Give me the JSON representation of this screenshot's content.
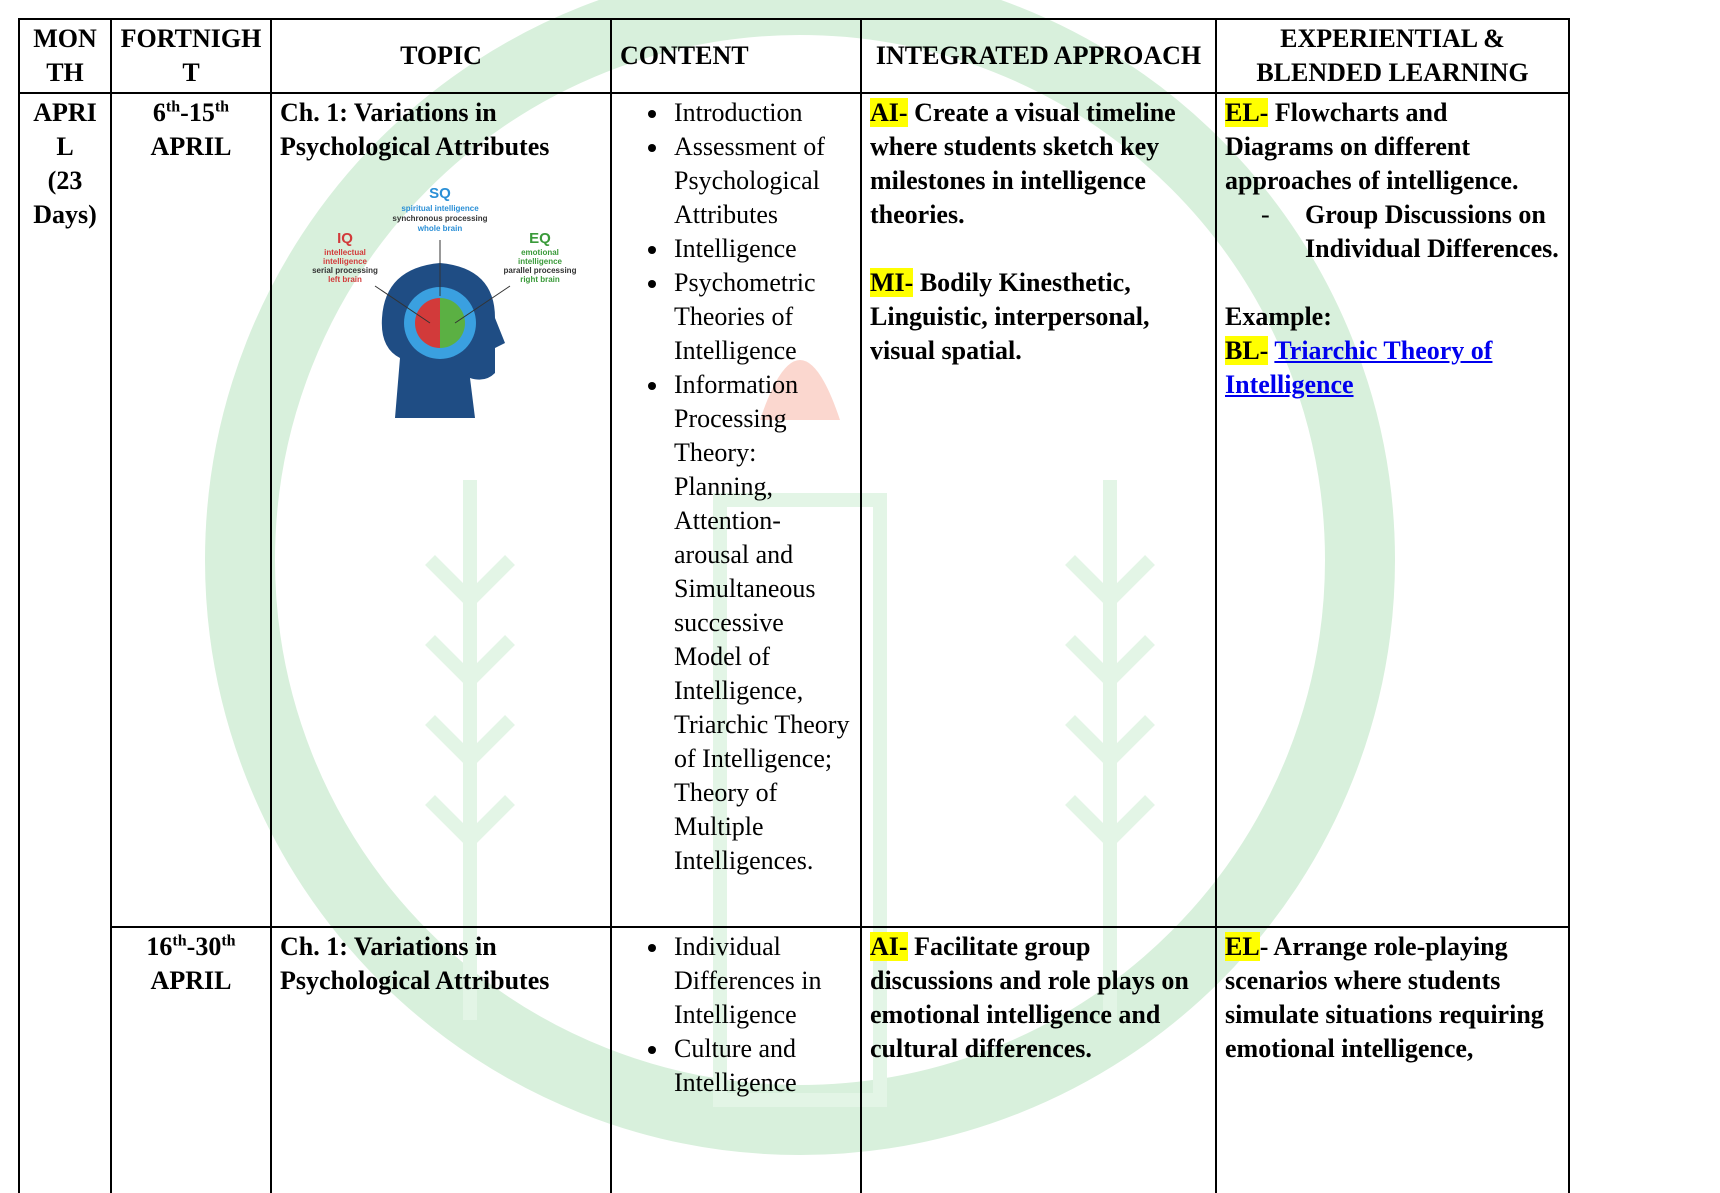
{
  "table": {
    "header": [
      "MONTH",
      "FORTNIGHT",
      "TOPIC",
      "CONTENT",
      "INTEGRATED APPROACH",
      "EXPERIENTIAL & BLENDED LEARNING"
    ],
    "month": {
      "name": "APRIL",
      "days": "(23 Days)"
    },
    "rows": [
      {
        "fortnight": {
          "start": "6",
          "start_sup": "th",
          "sep": "-",
          "end": "15",
          "end_sup": "th",
          "month": "APRIL"
        },
        "topic": "Ch. 1: Variations in Psychological Attributes",
        "figure": {
          "sq": {
            "code": "SQ",
            "lines": [
              "spiritual intelligence",
              "synchronous processing",
              "whole brain"
            ]
          },
          "iq": {
            "code": "IQ",
            "lines": [
              "intellectual",
              "intelligence",
              "serial processing",
              "left brain"
            ]
          },
          "eq": {
            "code": "EQ",
            "lines": [
              "emotional",
              "intelligence",
              "parallel processing",
              "right brain"
            ]
          }
        },
        "content": [
          "Introduction",
          "Assessment of Psychological Attributes",
          "Intelligence",
          "Psychometric Theories of Intelligence",
          "Information Processing Theory: Planning, Attention-arousal and Simultaneous successive Model of Intelligence, Triarchic Theory of Intelligence; Theory of Multiple Intelligences."
        ],
        "integrated": [
          {
            "tag": "AI-",
            "text": "Create a visual timeline where students sketch key milestones in intelligence theories."
          },
          {
            "tag": "MI-",
            "text": "Bodily Kinesthetic, Linguistic, interpersonal, visual spatial."
          }
        ],
        "experiential": {
          "el": {
            "tag": "EL-",
            "text": "Flowcharts and Diagrams on different approaches of intelligence."
          },
          "sub": [
            "Group Discussions on Individual Differences."
          ],
          "example": "Example:",
          "bl": {
            "tag": "BL-",
            "link": "Triarchic Theory of Intelligence"
          }
        }
      },
      {
        "fortnight": {
          "start": "16",
          "start_sup": "th",
          "sep": "-",
          "end": "30",
          "end_sup": "th",
          "month": "APRIL"
        },
        "topic": "Ch. 1: Variations in Psychological Attributes",
        "content": [
          "Individual Differences in Intelligence",
          "Culture and Intelligence"
        ],
        "integrated": [
          {
            "tag": "AI-",
            "text": "Facilitate group discussions and role plays on emotional intelligence and cultural differences."
          }
        ],
        "experiential": {
          "el": {
            "tag": "EL",
            "text": "- Arrange role-playing scenarios where students simulate situations requiring emotional intelligence,"
          }
        }
      }
    ]
  }
}
